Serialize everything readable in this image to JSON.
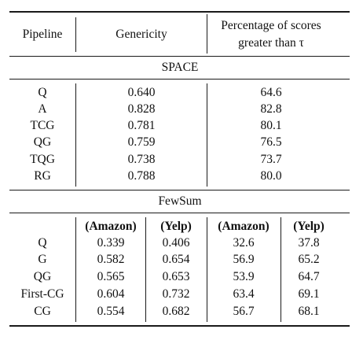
{
  "table": {
    "headers": {
      "pipeline": "Pipeline",
      "genericity": "Genericity",
      "percentage_line1": "Percentage of scores",
      "percentage_line2": "greater than τ"
    },
    "space": {
      "title": "SPACE",
      "rows": [
        {
          "pipeline": "Q",
          "genericity": "0.640",
          "percentage": "64.6"
        },
        {
          "pipeline": "A",
          "genericity": "0.828",
          "percentage": "82.8"
        },
        {
          "pipeline": "TCG",
          "genericity": "0.781",
          "percentage": "80.1"
        },
        {
          "pipeline": "QG",
          "genericity": "0.759",
          "percentage": "76.5"
        },
        {
          "pipeline": "TQG",
          "genericity": "0.738",
          "percentage": "73.7"
        },
        {
          "pipeline": "RG",
          "genericity": "0.788",
          "percentage": "80.0"
        }
      ]
    },
    "fewsum": {
      "title": "FewSum",
      "subheaders": [
        "(Amazon)",
        "(Yelp)",
        "(Amazon)",
        "(Yelp)"
      ],
      "rows": [
        {
          "pipeline": "Q",
          "gen_amazon": "0.339",
          "gen_yelp": "0.406",
          "pct_amazon": "32.6",
          "pct_yelp": "37.8"
        },
        {
          "pipeline": "G",
          "gen_amazon": "0.582",
          "gen_yelp": "0.654",
          "pct_amazon": "56.9",
          "pct_yelp": "65.2"
        },
        {
          "pipeline": "QG",
          "gen_amazon": "0.565",
          "gen_yelp": "0.653",
          "pct_amazon": "53.9",
          "pct_yelp": "64.7"
        },
        {
          "pipeline": "First-CG",
          "gen_amazon": "0.604",
          "gen_yelp": "0.732",
          "pct_amazon": "63.4",
          "pct_yelp": "69.1"
        },
        {
          "pipeline": "CG",
          "gen_amazon": "0.554",
          "gen_yelp": "0.682",
          "pct_amazon": "56.7",
          "pct_yelp": "68.1"
        }
      ]
    }
  }
}
